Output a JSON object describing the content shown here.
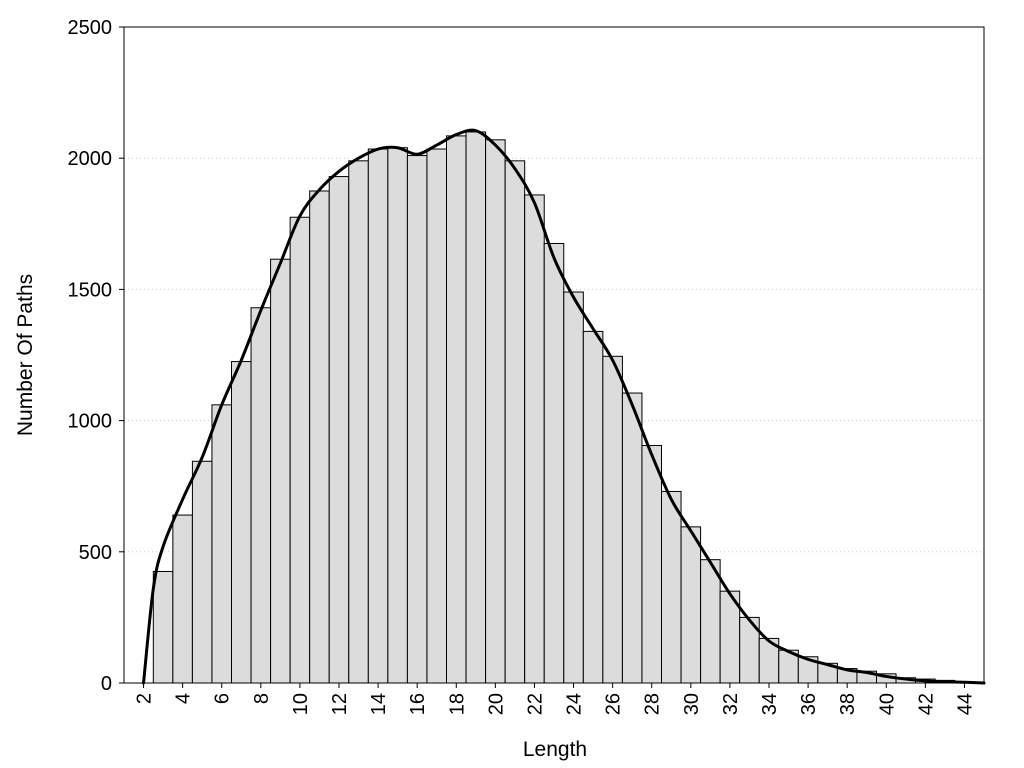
{
  "chart_data": {
    "type": "bar",
    "xlabel": "Length",
    "ylabel": "Number Of Paths",
    "x_ticks": [
      "2",
      "4",
      "6",
      "8",
      "10",
      "12",
      "14",
      "16",
      "18",
      "20",
      "22",
      "24",
      "26",
      "28",
      "30",
      "32",
      "34",
      "36",
      "38",
      "40",
      "42",
      "44"
    ],
    "y_ticks": [
      "0",
      "500",
      "1000",
      "1500",
      "2000",
      "2500"
    ],
    "xlim": [
      1,
      45
    ],
    "ylim": [
      0,
      2500
    ],
    "grid": "horizontal dotted",
    "colors": {
      "bar_fill": "#dcdcdc",
      "bar_edge": "#000000",
      "line": "#000000"
    },
    "series": [
      {
        "type": "bar",
        "x": [
          3,
          4,
          5,
          6,
          7,
          8,
          9,
          10,
          11,
          12,
          13,
          14,
          15,
          16,
          17,
          18,
          19,
          20,
          21,
          22,
          23,
          24,
          25,
          26,
          27,
          28,
          29,
          30,
          31,
          32,
          33,
          34,
          35,
          36,
          37,
          38,
          39,
          40,
          41,
          42,
          43,
          44
        ],
        "values": [
          425,
          640,
          845,
          1060,
          1225,
          1430,
          1615,
          1775,
          1875,
          1930,
          1990,
          2035,
          2040,
          2010,
          2035,
          2085,
          2100,
          2070,
          1990,
          1860,
          1675,
          1490,
          1340,
          1245,
          1105,
          905,
          730,
          595,
          470,
          350,
          250,
          170,
          125,
          100,
          75,
          55,
          45,
          35,
          20,
          15,
          10,
          5
        ]
      },
      {
        "type": "line",
        "x": [
          2,
          2.5,
          3,
          4,
          5,
          6,
          7,
          8,
          9,
          10,
          11,
          12,
          13,
          14,
          15,
          16,
          17,
          18,
          19,
          20,
          21,
          22,
          23,
          24,
          25,
          26,
          27,
          28,
          29,
          30,
          31,
          32,
          33,
          34,
          35,
          36,
          37,
          38,
          39,
          40,
          41,
          42,
          43,
          44,
          45
        ],
        "values": [
          0,
          360,
          520,
          700,
          860,
          1060,
          1230,
          1420,
          1600,
          1780,
          1880,
          1950,
          2000,
          2035,
          2040,
          2015,
          2050,
          2090,
          2105,
          2050,
          1960,
          1830,
          1620,
          1470,
          1350,
          1230,
          1060,
          870,
          700,
          580,
          460,
          340,
          240,
          160,
          120,
          90,
          70,
          50,
          40,
          25,
          15,
          8,
          5,
          3,
          0
        ]
      }
    ]
  }
}
